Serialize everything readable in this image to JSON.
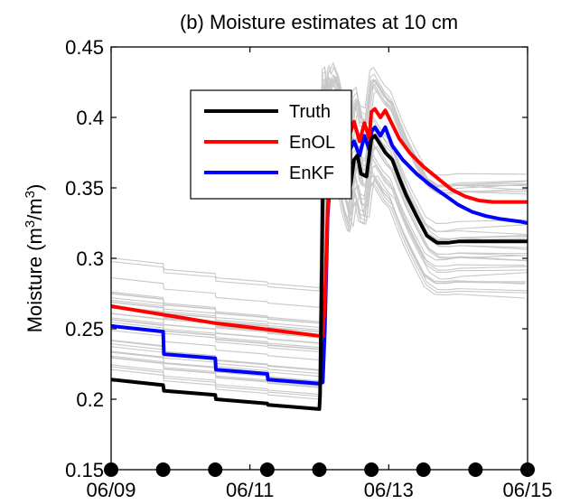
{
  "chart_data": {
    "type": "line",
    "title": "(b) Moisture estimates at 10 cm",
    "ylabel": "Moisture (m3/m3)",
    "ylabel_parts": {
      "a": "Moisture (m",
      "b": "3",
      "c": "/m",
      "d": "3",
      "e": ")"
    },
    "xlabel": "",
    "ylim": [
      0.15,
      0.45
    ],
    "xlim": [
      0,
      6
    ],
    "y_ticks": [
      0.15,
      0.2,
      0.25,
      0.3,
      0.35,
      0.4,
      0.45
    ],
    "y_tick_labels": [
      "0.15",
      "0.2",
      "0.25",
      "0.3",
      "0.35",
      "0.4",
      "0.45"
    ],
    "x_ticks": [
      0,
      2,
      4,
      6
    ],
    "x_tick_labels": [
      "06/09",
      "06/11",
      "06/13",
      "06/15"
    ],
    "observation_times": [
      0,
      0.75,
      1.5,
      2.25,
      3.0,
      3.75,
      4.5,
      5.25,
      6.0
    ],
    "observation_marker_color": "#000000",
    "ensemble_color": "#c8c8c8",
    "legend_position": "upper-left",
    "series": [
      {
        "name": "Truth",
        "color": "#000000",
        "x": [
          0,
          0.75,
          0.76,
          1.5,
          1.51,
          2.25,
          2.26,
          3.0,
          3.01,
          3.06,
          3.1,
          3.12,
          3.14,
          3.16,
          3.18,
          3.22,
          3.3,
          3.38,
          3.45,
          3.5,
          3.55,
          3.6,
          3.68,
          3.75,
          3.8,
          3.85,
          3.95,
          4.05,
          4.15,
          4.25,
          4.4,
          4.55,
          4.7,
          4.85,
          5.0,
          5.2,
          5.4,
          5.5,
          5.6,
          5.75,
          5.9,
          6.0
        ],
        "values": [
          0.214,
          0.21,
          0.206,
          0.203,
          0.2,
          0.197,
          0.196,
          0.193,
          0.203,
          0.385,
          0.387,
          0.37,
          0.385,
          0.388,
          0.385,
          0.39,
          0.38,
          0.362,
          0.352,
          0.37,
          0.373,
          0.36,
          0.358,
          0.385,
          0.387,
          0.383,
          0.375,
          0.37,
          0.357,
          0.345,
          0.33,
          0.316,
          0.311,
          0.311,
          0.312,
          0.312,
          0.312,
          0.312,
          0.312,
          0.312,
          0.312,
          0.312
        ]
      },
      {
        "name": "EnOL",
        "color": "#ff0000",
        "x": [
          0,
          0.5,
          1.0,
          1.5,
          2.0,
          2.5,
          3.0,
          3.05,
          3.08,
          3.12,
          3.18,
          3.25,
          3.3,
          3.35,
          3.42,
          3.5,
          3.58,
          3.65,
          3.72,
          3.75,
          3.8,
          3.88,
          3.95,
          4.05,
          4.15,
          4.3,
          4.5,
          4.7,
          4.9,
          5.1,
          5.3,
          5.5,
          5.7,
          5.9,
          6.0
        ],
        "values": [
          0.266,
          0.262,
          0.258,
          0.254,
          0.251,
          0.248,
          0.245,
          0.245,
          0.27,
          0.335,
          0.385,
          0.405,
          0.398,
          0.382,
          0.385,
          0.397,
          0.383,
          0.396,
          0.385,
          0.404,
          0.406,
          0.4,
          0.405,
          0.395,
          0.385,
          0.375,
          0.365,
          0.357,
          0.349,
          0.344,
          0.341,
          0.34,
          0.34,
          0.34,
          0.34
        ]
      },
      {
        "name": "EnKF",
        "color": "#0000ff",
        "x": [
          0,
          0.75,
          0.76,
          1.5,
          1.51,
          2.25,
          2.26,
          3.0,
          3.05,
          3.08,
          3.12,
          3.18,
          3.25,
          3.3,
          3.35,
          3.42,
          3.5,
          3.58,
          3.65,
          3.72,
          3.75,
          3.8,
          3.88,
          3.95,
          4.05,
          4.2,
          4.4,
          4.6,
          4.8,
          5.0,
          5.2,
          5.4,
          5.6,
          5.75,
          5.9,
          6.0
        ],
        "values": [
          0.252,
          0.248,
          0.232,
          0.229,
          0.221,
          0.218,
          0.214,
          0.211,
          0.212,
          0.25,
          0.33,
          0.375,
          0.395,
          0.385,
          0.372,
          0.375,
          0.383,
          0.373,
          0.387,
          0.377,
          0.39,
          0.393,
          0.387,
          0.393,
          0.38,
          0.37,
          0.36,
          0.352,
          0.345,
          0.338,
          0.333,
          0.33,
          0.328,
          0.327,
          0.326,
          0.325
        ]
      }
    ]
  }
}
